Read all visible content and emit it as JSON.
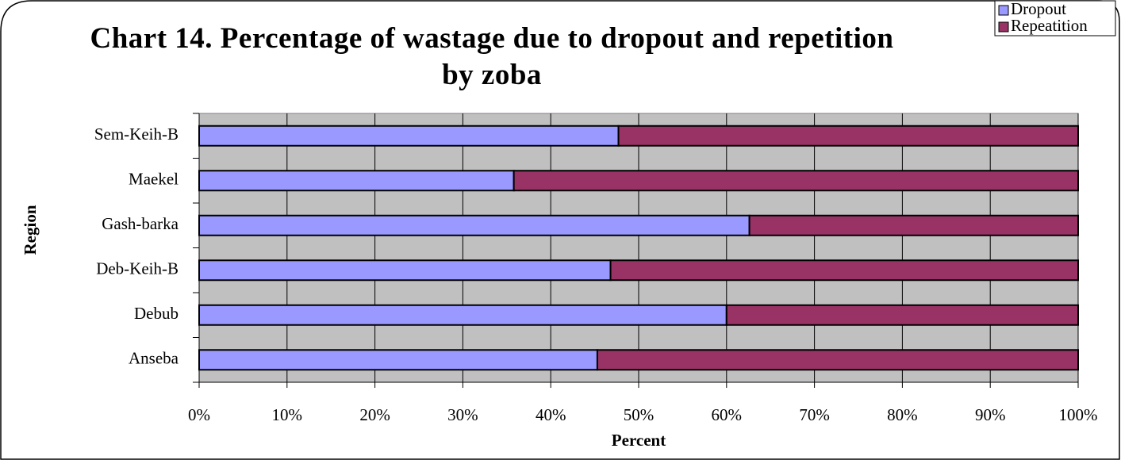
{
  "chart_data": {
    "type": "stacked_barh",
    "title": "Chart 14. Percentage of wastage due to dropout and repetition by zoba",
    "x_label": "Percent",
    "y_label": "Region",
    "categories": [
      "Anseba",
      "Debub",
      "Deb-Keih-B",
      "Gash-barka",
      "Maekel",
      "Sem-Keih-B"
    ],
    "series": [
      {
        "name": "Dropout",
        "color": "#9999ff",
        "values": [
          45.3,
          60.0,
          46.8,
          62.6,
          35.8,
          47.7
        ]
      },
      {
        "name": "Repeatition",
        "color": "#993366",
        "values": [
          54.7,
          40.0,
          53.2,
          37.4,
          64.2,
          52.3
        ]
      }
    ],
    "xlim": [
      0,
      100
    ],
    "xticks": [
      {
        "value": 0,
        "label": "0%"
      },
      {
        "value": 10,
        "label": "10%"
      },
      {
        "value": 20,
        "label": "20%"
      },
      {
        "value": 30,
        "label": "30%"
      },
      {
        "value": 40,
        "label": "40%"
      },
      {
        "value": 50,
        "label": "50%"
      },
      {
        "value": 60,
        "label": "60%"
      },
      {
        "value": 70,
        "label": "70%"
      },
      {
        "value": 80,
        "label": "80%"
      },
      {
        "value": 90,
        "label": "90%"
      },
      {
        "value": 100,
        "label": "100%"
      }
    ],
    "grid": true,
    "legend": "top-right"
  }
}
